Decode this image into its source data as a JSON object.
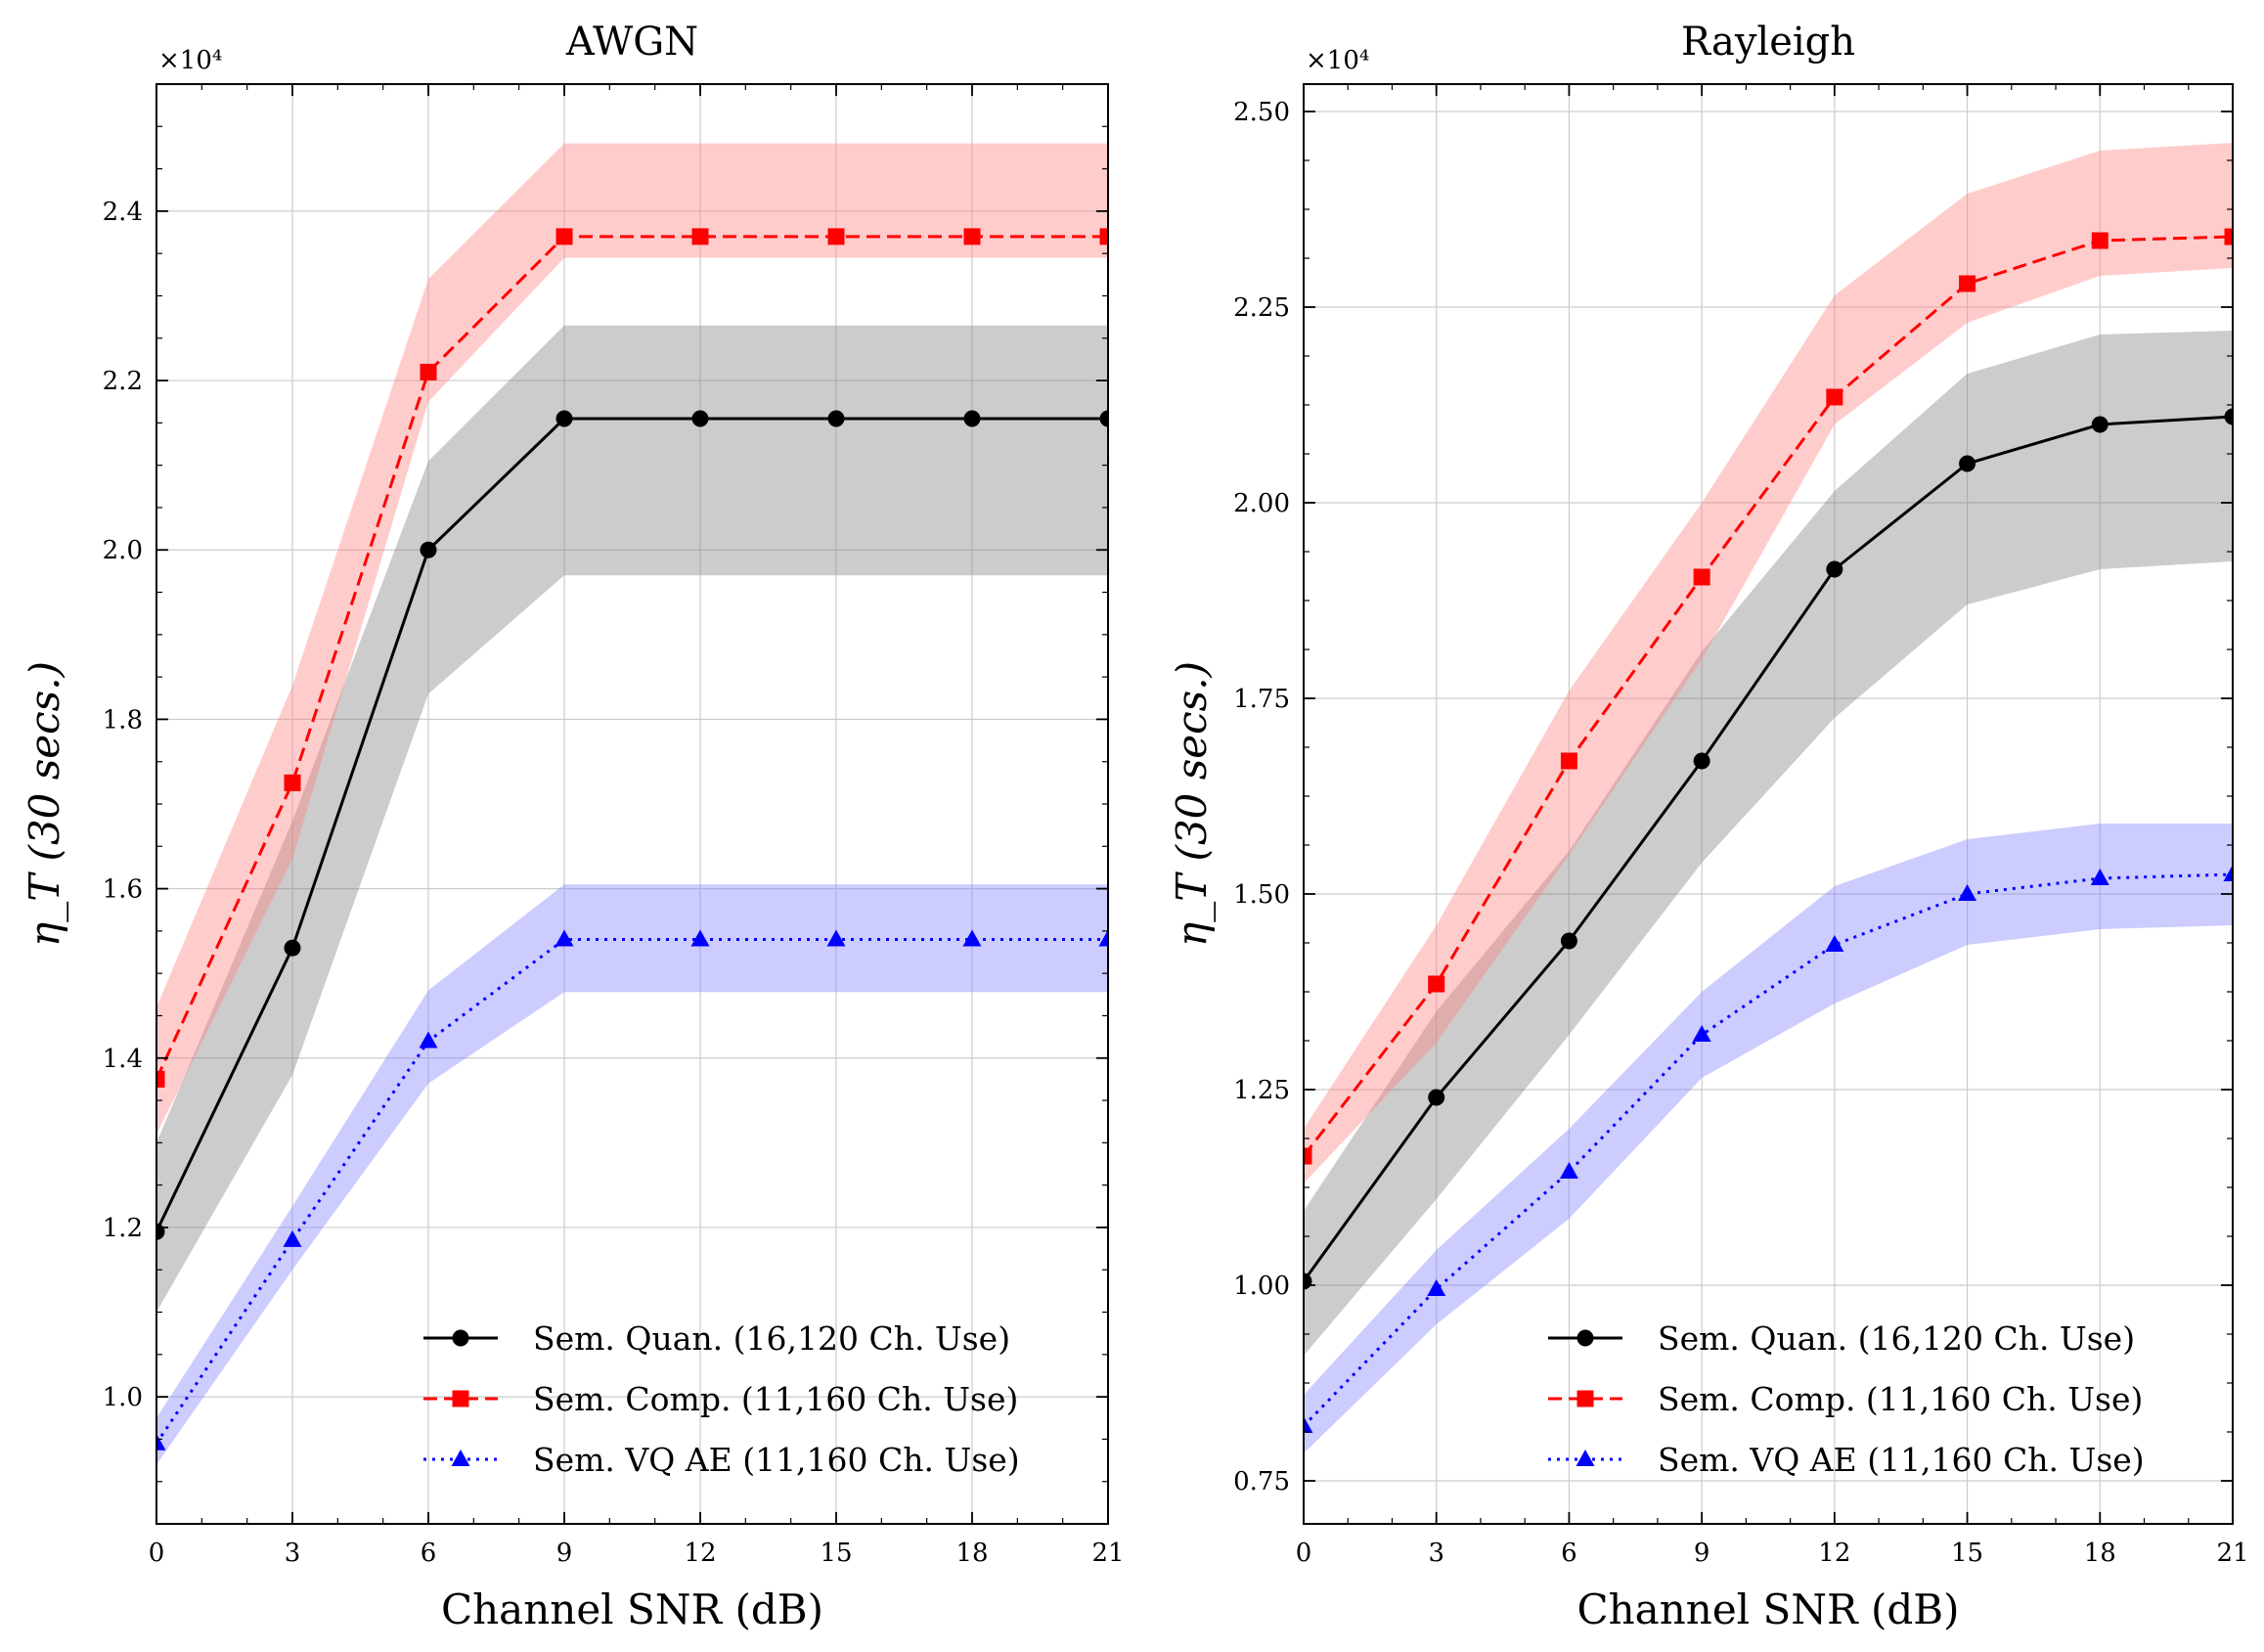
{
  "chart_data": [
    {
      "type": "line",
      "title": "AWGN",
      "xlabel": "Channel SNR (dB)",
      "ylabel": "η_T (30 secs.)",
      "y_multiplier": "×10⁴",
      "x": [
        0,
        3,
        6,
        9,
        12,
        15,
        18,
        21
      ],
      "xlim": [
        0,
        21
      ],
      "ylim": [
        0.85,
        2.55
      ],
      "xticks": [
        0,
        3,
        6,
        9,
        12,
        15,
        18,
        21
      ],
      "yticks": [
        1.0,
        1.2,
        1.4,
        1.6,
        1.8,
        2.0,
        2.2,
        2.4
      ],
      "ytick_labels": [
        "1.0",
        "1.2",
        "1.4",
        "1.6",
        "1.8",
        "2.0",
        "2.2",
        "2.4"
      ],
      "grid": true,
      "legend_position": "lower-right",
      "series": [
        {
          "name": "Sem. Quan. (16,120 Ch. Use)",
          "color": "#000000",
          "band_color": "#808080",
          "dash": "solid",
          "marker": "circle",
          "values": [
            1.195,
            1.53,
            2.0,
            2.155,
            2.155,
            2.155,
            2.155,
            2.155
          ],
          "lower": [
            1.1,
            1.38,
            1.83,
            1.97,
            1.97,
            1.97,
            1.97,
            1.97
          ],
          "upper": [
            1.3,
            1.68,
            2.105,
            2.265,
            2.265,
            2.265,
            2.265,
            2.265
          ]
        },
        {
          "name": "Sem. Comp. (11,160 Ch. Use)",
          "color": "#ff0000",
          "band_color": "#ff8080",
          "dash": "dashed",
          "marker": "square",
          "values": [
            1.375,
            1.725,
            2.21,
            2.37,
            2.37,
            2.37,
            2.37,
            2.37
          ],
          "lower": [
            1.31,
            1.635,
            2.175,
            2.345,
            2.345,
            2.345,
            2.345,
            2.345
          ],
          "upper": [
            1.46,
            1.84,
            2.32,
            2.48,
            2.48,
            2.48,
            2.48,
            2.48
          ]
        },
        {
          "name": "Sem. VQ AE (11,160 Ch. Use)",
          "color": "#0000ff",
          "band_color": "#8080ff",
          "dash": "dotted",
          "marker": "triangle",
          "values": [
            0.945,
            1.185,
            1.42,
            1.54,
            1.54,
            1.54,
            1.54,
            1.54
          ],
          "lower": [
            0.92,
            1.15,
            1.37,
            1.478,
            1.478,
            1.478,
            1.478,
            1.478
          ],
          "upper": [
            0.975,
            1.225,
            1.48,
            1.605,
            1.605,
            1.605,
            1.605,
            1.605
          ]
        }
      ]
    },
    {
      "type": "line",
      "title": "Rayleigh",
      "xlabel": "Channel SNR (dB)",
      "ylabel": "η_T (30 secs.)",
      "y_multiplier": "×10⁴",
      "x": [
        0,
        3,
        6,
        9,
        12,
        15,
        18,
        21
      ],
      "xlim": [
        0,
        21
      ],
      "ylim": [
        0.695,
        2.535
      ],
      "xticks": [
        0,
        3,
        6,
        9,
        12,
        15,
        18,
        21
      ],
      "yticks": [
        0.75,
        1.0,
        1.25,
        1.5,
        1.75,
        2.0,
        2.25,
        2.5
      ],
      "ytick_labels": [
        "0.75",
        "1.00",
        "1.25",
        "1.50",
        "1.75",
        "2.00",
        "2.25",
        "2.50"
      ],
      "grid": true,
      "legend_position": "lower-right",
      "series": [
        {
          "name": "Sem. Quan. (16,120 Ch. Use)",
          "color": "#000000",
          "band_color": "#808080",
          "dash": "solid",
          "marker": "circle",
          "values": [
            1.005,
            1.24,
            1.44,
            1.67,
            1.915,
            2.05,
            2.1,
            2.11
          ],
          "lower": [
            0.91,
            1.11,
            1.32,
            1.54,
            1.725,
            1.87,
            1.915,
            1.925
          ],
          "upper": [
            1.095,
            1.35,
            1.555,
            1.81,
            2.015,
            2.165,
            2.215,
            2.22
          ]
        },
        {
          "name": "Sem. Comp. (11,160 Ch. Use)",
          "color": "#ff0000",
          "band_color": "#ff8080",
          "dash": "dashed",
          "marker": "square",
          "values": [
            1.165,
            1.385,
            1.67,
            1.905,
            2.135,
            2.28,
            2.335,
            2.34
          ],
          "lower": [
            1.13,
            1.31,
            1.55,
            1.8,
            2.1,
            2.23,
            2.29,
            2.3
          ],
          "upper": [
            1.2,
            1.46,
            1.76,
            2.0,
            2.265,
            2.395,
            2.45,
            2.46
          ]
        },
        {
          "name": "Sem. VQ AE (11,160 Ch. Use)",
          "color": "#0000ff",
          "band_color": "#8080ff",
          "dash": "dotted",
          "marker": "triangle",
          "values": [
            0.82,
            0.995,
            1.145,
            1.32,
            1.435,
            1.5,
            1.52,
            1.525
          ],
          "lower": [
            0.785,
            0.95,
            1.085,
            1.265,
            1.36,
            1.435,
            1.455,
            1.46
          ],
          "upper": [
            0.86,
            1.045,
            1.2,
            1.375,
            1.51,
            1.57,
            1.59,
            1.59
          ]
        }
      ]
    }
  ]
}
